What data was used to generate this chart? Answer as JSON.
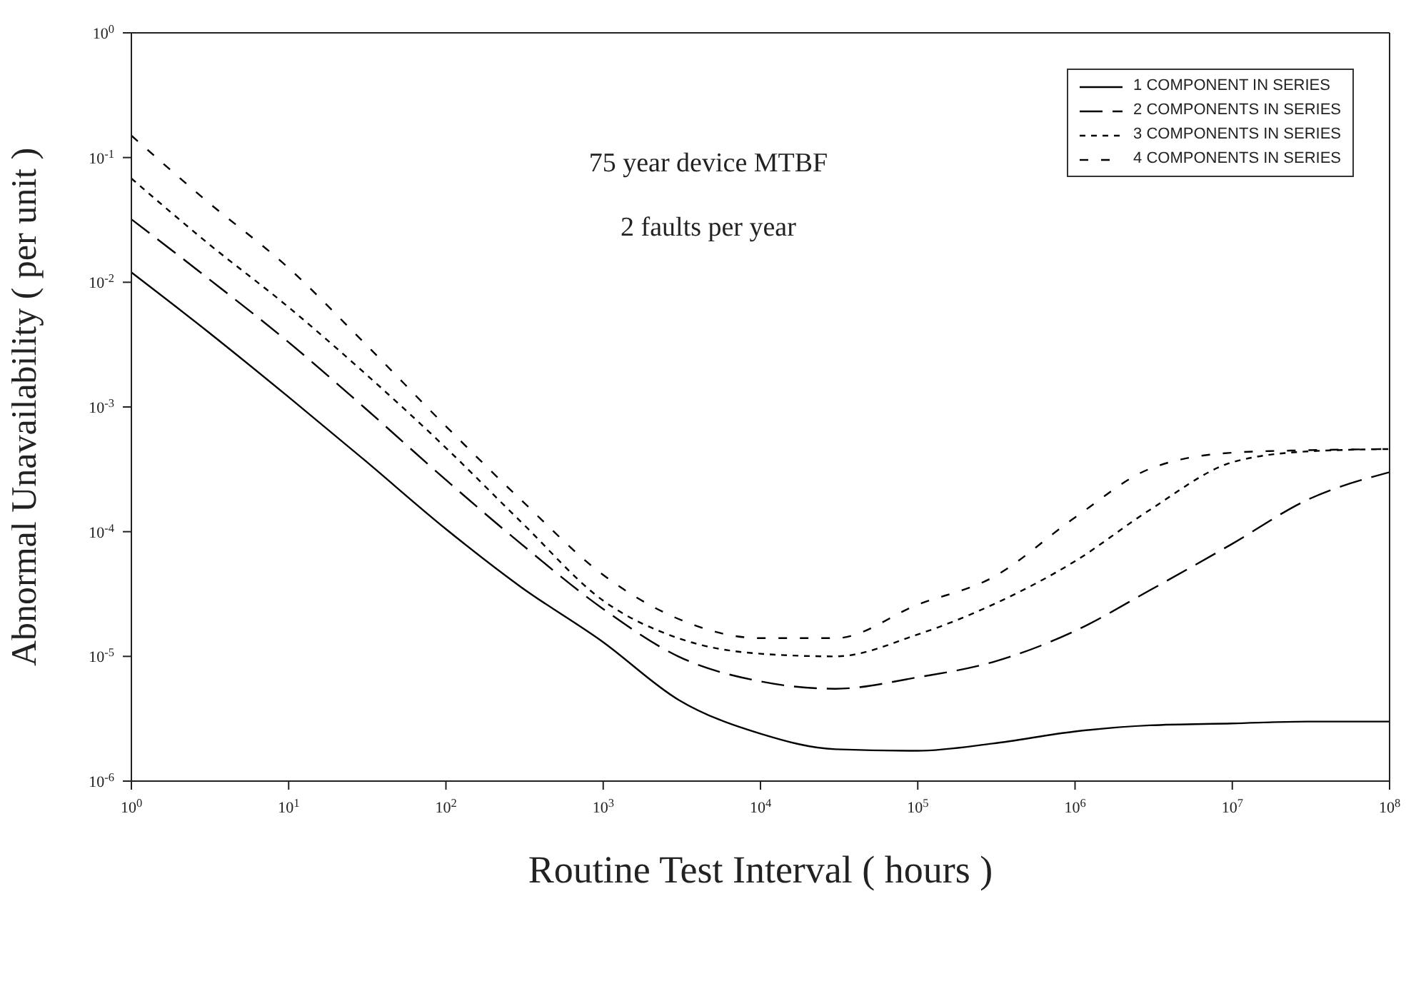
{
  "chart_data": {
    "type": "line",
    "xlabel": "Routine Test Interval ( hours )",
    "ylabel": "Abnormal Unavailability ( per unit )",
    "annotations": [
      "75 year device MTBF",
      "2 faults per year"
    ],
    "x": [
      1,
      3,
      10,
      30,
      100,
      300,
      1000,
      3000,
      10000,
      30000,
      100000,
      300000,
      1000000,
      3000000,
      10000000,
      30000000,
      100000000
    ],
    "series": [
      {
        "name": "1 COMPONENT IN SERIES",
        "color": "#000000",
        "line_style": "solid",
        "values": [
          0.012,
          0.0041,
          0.0012,
          0.00038,
          0.000105,
          3.6e-05,
          1.3e-05,
          4.5e-06,
          2.4e-06,
          1.8e-06,
          1.75e-06,
          2e-06,
          2.5e-06,
          2.8e-06,
          2.9e-06,
          3e-06,
          3e-06
        ]
      },
      {
        "name": "2 COMPONENTS IN SERIES",
        "color": "#000000",
        "line_style": "dashed",
        "values": [
          0.032,
          0.011,
          0.0033,
          0.001,
          0.00026,
          8e-05,
          2.4e-05,
          1e-05,
          6.3e-06,
          5.5e-06,
          6.8e-06,
          9e-06,
          1.6e-05,
          3.4e-05,
          8e-05,
          0.00018,
          0.0003
        ]
      },
      {
        "name": "3 COMPONENTS IN SERIES",
        "color": "#000000",
        "line_style": "dotted",
        "values": [
          0.068,
          0.021,
          0.0063,
          0.0019,
          0.00047,
          0.00012,
          2.8e-05,
          1.4e-05,
          1.05e-05,
          1e-05,
          1.5e-05,
          2.6e-05,
          5.8e-05,
          0.00015,
          0.00036,
          0.00044,
          0.00046
        ]
      },
      {
        "name": "4 COMPONENTS IN SERIES",
        "color": "#000000",
        "line_style": "dashed",
        "values": [
          0.15,
          0.045,
          0.013,
          0.0033,
          0.0007,
          0.00018,
          4.5e-05,
          2e-05,
          1.4e-05,
          1.4e-05,
          2.6e-05,
          4.3e-05,
          0.00013,
          0.00032,
          0.00043,
          0.00045,
          0.00046
        ]
      }
    ],
    "xlim": [
      1,
      100000000
    ],
    "xticks": [
      {
        "value": 1,
        "label": "10$^{0}$"
      },
      {
        "value": 10,
        "label": "10$^{1}$"
      },
      {
        "value": 100,
        "label": "10$^{2}$"
      },
      {
        "value": 1000,
        "label": "10$^{3}$"
      },
      {
        "value": 10000,
        "label": "10$^{4}$"
      },
      {
        "value": 100000,
        "label": "10$^{5}$"
      },
      {
        "value": 1000000,
        "label": "10$^{6}$"
      },
      {
        "value": 10000000,
        "label": "10$^{7}$"
      },
      {
        "value": 100000000,
        "label": "10$^{8}$"
      }
    ],
    "ylim": [
      1e-06,
      1
    ],
    "yticks": [
      {
        "value": 1e-06,
        "label": "10$^{-6}$"
      },
      {
        "value": 1e-05,
        "label": "10$^{-5}$"
      },
      {
        "value": 0.0001,
        "label": "10$^{-4}$"
      },
      {
        "value": 0.001,
        "label": "10$^{-3}$"
      },
      {
        "value": 0.01,
        "label": "10$^{-2}$"
      },
      {
        "value": 0.1,
        "label": "10$^{-1}$"
      },
      {
        "value": 1,
        "label": "10$^{0}$"
      }
    ],
    "log": "xy",
    "grid": false,
    "legend": "top right",
    "marker": "none"
  }
}
